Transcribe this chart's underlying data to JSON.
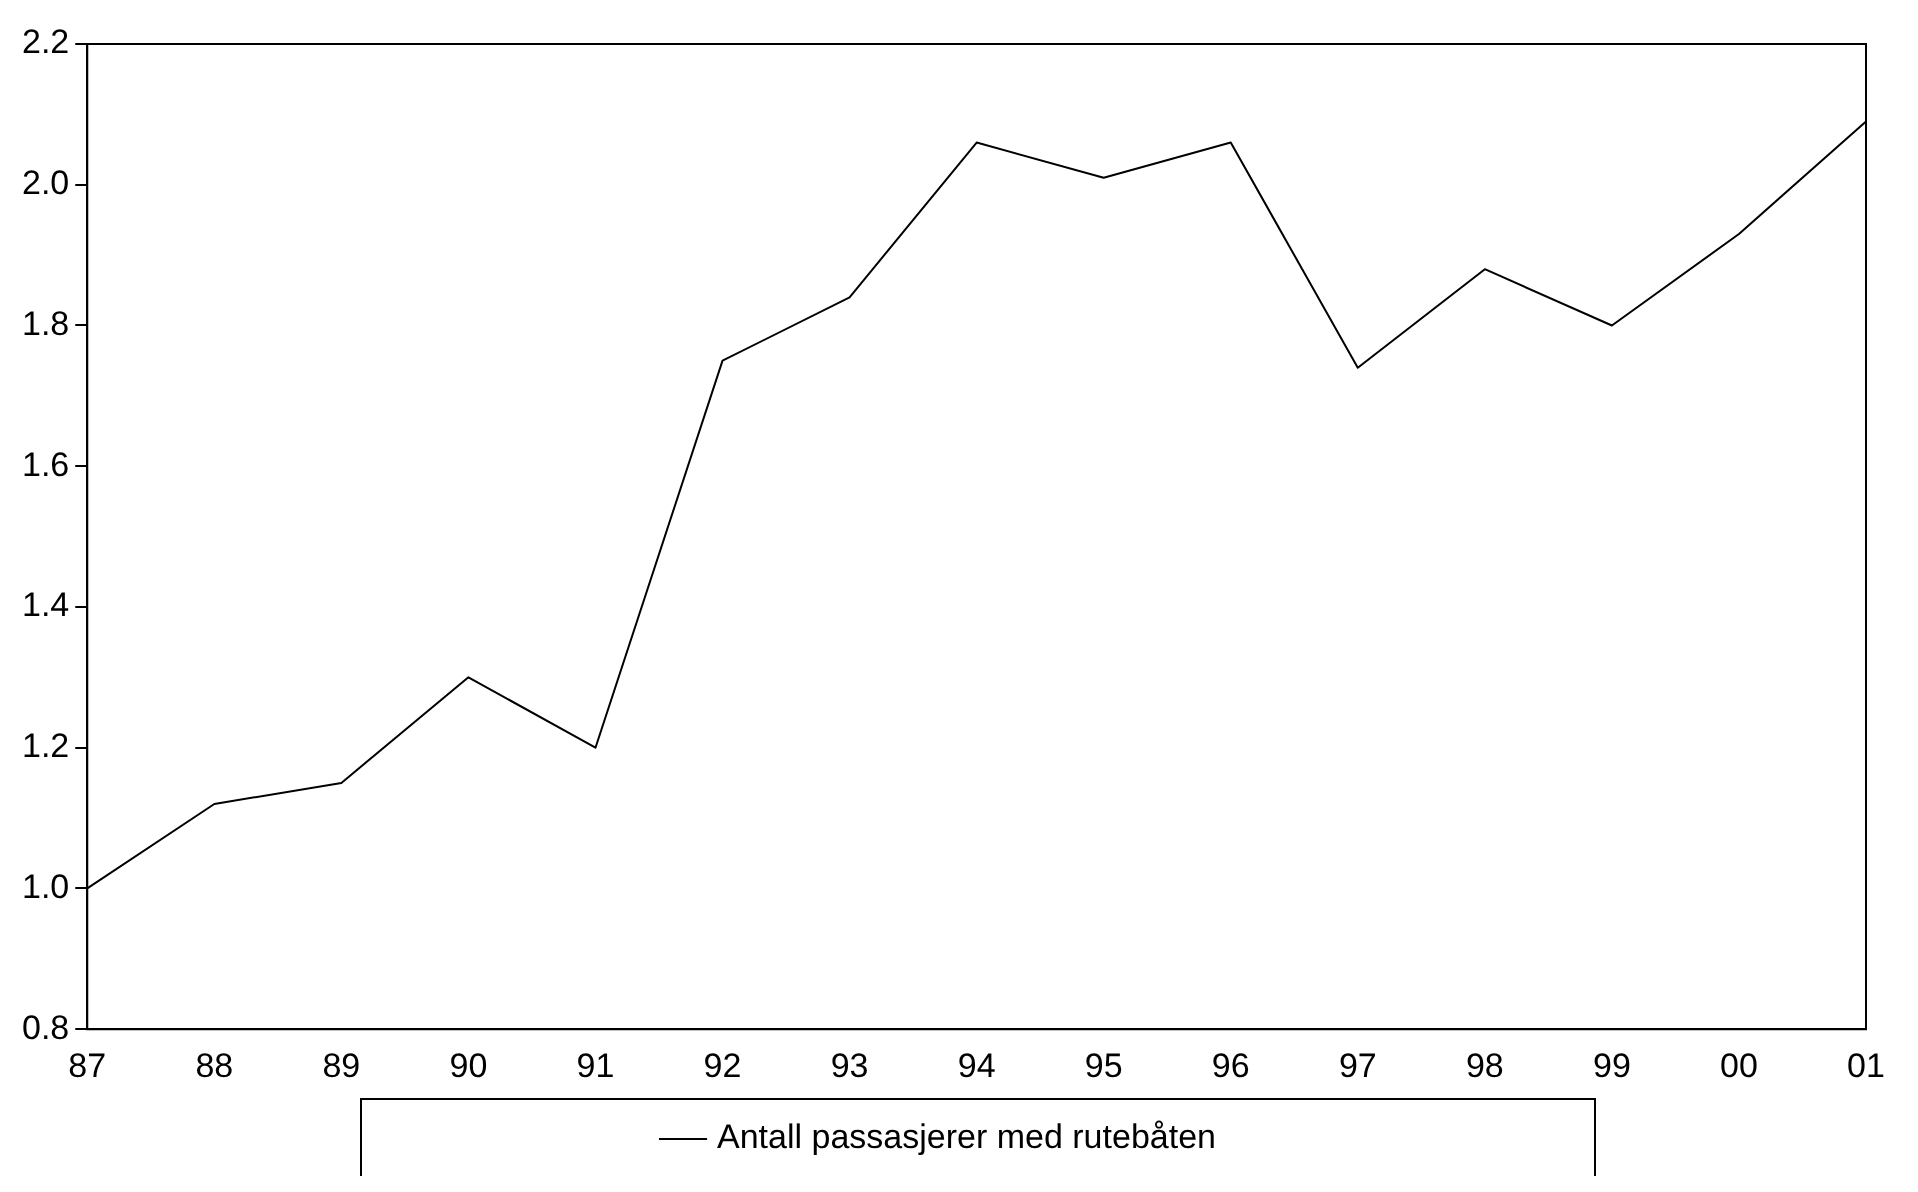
{
  "chart_data": {
    "type": "line",
    "categories": [
      "87",
      "88",
      "89",
      "90",
      "91",
      "92",
      "93",
      "94",
      "95",
      "96",
      "97",
      "98",
      "99",
      "00",
      "01"
    ],
    "series": [
      {
        "name": "Antall passasjerer med rutebåten",
        "color": "#000000",
        "values": [
          1.0,
          1.12,
          1.15,
          1.3,
          1.2,
          1.75,
          1.84,
          2.06,
          2.01,
          2.06,
          1.74,
          1.88,
          1.8,
          1.93,
          2.09
        ]
      }
    ],
    "ylim": [
      0.8,
      2.2
    ],
    "yticks": [
      {
        "value": 0.8,
        "label": "0.8"
      },
      {
        "value": 1.0,
        "label": "1.0"
      },
      {
        "value": 1.2,
        "label": "1.2"
      },
      {
        "value": 1.4,
        "label": "1.4"
      },
      {
        "value": 1.6,
        "label": "1.6"
      },
      {
        "value": 1.8,
        "label": "1.8"
      },
      {
        "value": 2.0,
        "label": "2.0"
      },
      {
        "value": 2.2,
        "label": "2.2"
      }
    ],
    "grid": false,
    "legend": "bottom",
    "marker": "none",
    "line_style": "solid"
  }
}
